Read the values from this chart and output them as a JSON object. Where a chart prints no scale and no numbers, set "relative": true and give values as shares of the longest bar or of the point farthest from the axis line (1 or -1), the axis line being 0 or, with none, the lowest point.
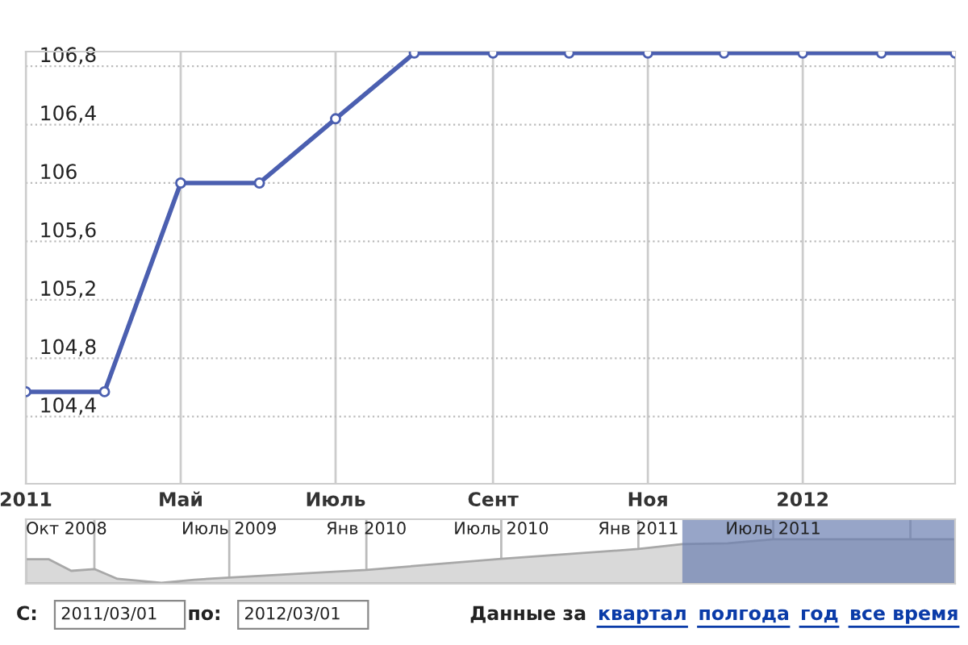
{
  "chart_data": [
    {
      "type": "line",
      "x": [
        "2011-03-01",
        "2011-04-01",
        "2011-05-01",
        "2011-06-01",
        "2011-07-01",
        "2011-08-01",
        "2011-09-01",
        "2011-10-01",
        "2011-11-01",
        "2011-12-01",
        "2012-01-01",
        "2012-02-01",
        "2012-03-01"
      ],
      "series": [
        {
          "color": "#4b5fb0",
          "values": [
            104.57,
            104.57,
            106.0,
            106.0,
            106.44,
            106.89,
            106.89,
            106.89,
            106.89,
            106.89,
            106.89,
            106.89,
            106.89
          ]
        }
      ],
      "xlim": [
        "2011-03-01",
        "2012-03-01"
      ],
      "xticks": [
        {
          "value": "2011-03-01",
          "label": "2011"
        },
        {
          "value": "2011-05-01",
          "label": "Май"
        },
        {
          "value": "2011-07-01",
          "label": "Июль"
        },
        {
          "value": "2011-09-01",
          "label": "Сент"
        },
        {
          "value": "2011-11-01",
          "label": "Ноя"
        },
        {
          "value": "2012-01-01",
          "label": "2012"
        }
      ],
      "ylim": [
        103.94,
        106.9
      ],
      "yticks": [
        {
          "value": 104.4,
          "label": "104,4"
        },
        {
          "value": 104.8,
          "label": "104,8"
        },
        {
          "value": 105.2,
          "label": "105,2"
        },
        {
          "value": 105.6,
          "label": "105,6"
        },
        {
          "value": 106,
          "label": "106"
        },
        {
          "value": 106.4,
          "label": "106,4"
        },
        {
          "value": 106.8,
          "label": "106,8"
        }
      ],
      "grid": true,
      "marker": "circle",
      "line_style": "solid",
      "legend": false
    },
    {
      "type": "area",
      "relative": true,
      "x": [
        "2008-10-01",
        "2008-11-01",
        "2008-12-01",
        "2009-01-01",
        "2009-02-01",
        "2009-04-01",
        "2009-05-15",
        "2009-07-01",
        "2010-01-01",
        "2010-07-01",
        "2011-01-01",
        "2011-03-01",
        "2011-05-01",
        "2011-07-01",
        "2012-03-01"
      ],
      "series": [
        {
          "color": "#d9d9d9",
          "values": [
            0.55,
            0.55,
            0.29,
            0.33,
            0.11,
            0.02,
            0.09,
            0.14,
            0.31,
            0.56,
            0.78,
            0.89,
            0.91,
            1,
            1
          ]
        }
      ],
      "xlim": [
        "2008-10-01",
        "2012-03-01"
      ],
      "xticks": [
        {
          "value": "2008-10-01",
          "label": "Окт 2008"
        },
        {
          "value": "2009-01-01",
          "label": null
        },
        {
          "value": "2009-07-01",
          "label": "Июль 2009"
        },
        {
          "value": "2010-01-01",
          "label": "Янв 2010"
        },
        {
          "value": "2010-07-01",
          "label": "Июль 2010"
        },
        {
          "value": "2011-01-01",
          "label": "Янв 2011"
        },
        {
          "value": "2011-07-01",
          "label": "Июль 2011"
        },
        {
          "value": "2012-01-01",
          "label": null
        }
      ],
      "grid": "x",
      "bands": [
        {
          "axis": "x",
          "from": "2011-03-01",
          "to": "2012-03-01",
          "color": "#6b7fb0"
        }
      ],
      "annotations": [
        "С:",
        "2011/03/01",
        "по:",
        "2012/03/01",
        "Данные за",
        "квартал",
        "полгода",
        "год",
        "все время"
      ]
    }
  ]
}
